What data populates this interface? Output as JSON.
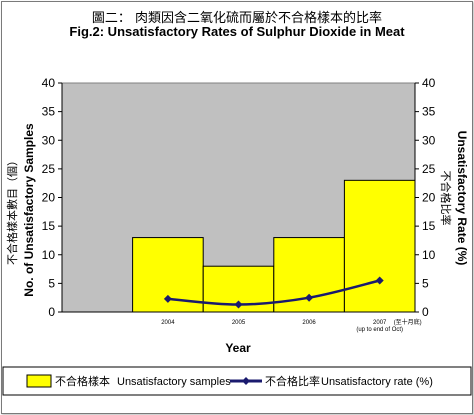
{
  "chart_data": {
    "type": "bar+line",
    "title_cn": "圖二： 肉類因含二氧化硫而屬於不合格樣本的比率",
    "title": "Fig.2: Unsatisfactory Rates of Sulphur Dioxide in Meat",
    "categories": [
      "2004",
      "2005",
      "2006",
      "2007"
    ],
    "category_notes": [
      "",
      "",
      "",
      "(至十月底)"
    ],
    "category_notes_en": [
      "",
      "",
      "",
      "(up to end of Oct)"
    ],
    "xlabel": "Year",
    "ylabel_left_cn": "不合格樣本數目（個）",
    "ylabel_left": "No. of Unsatisfactory Samples",
    "ylabel_right_cn": "不合格比率",
    "ylabel_right": "Unsatisfactory Rate (%)",
    "ylim_left": [
      0,
      40
    ],
    "ylim_right": [
      0,
      40
    ],
    "yticks": [
      0,
      5,
      10,
      15,
      20,
      25,
      30,
      35,
      40
    ],
    "series": [
      {
        "name_cn": "不合格樣本",
        "name": "Unsatisfactory samples",
        "type": "bar",
        "axis": "left",
        "color": "#ffff00",
        "values": [
          13,
          8,
          13,
          23
        ]
      },
      {
        "name_cn": "不合格比率",
        "name": "Unsatisfactory rate (%)",
        "type": "line",
        "axis": "right",
        "color": "#1a1a6e",
        "values": [
          2.3,
          1.3,
          2.5,
          5.5
        ]
      }
    ],
    "plot_background": "#c0c0c0",
    "grid": false,
    "legend_position": "bottom"
  }
}
